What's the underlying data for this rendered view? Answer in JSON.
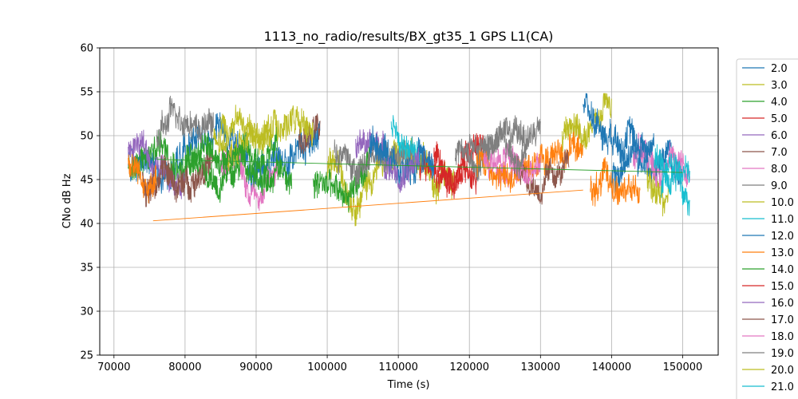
{
  "chart_data": {
    "type": "line",
    "title": "1113_no_radio/results/BX_gt35_1 GPS L1(CA)",
    "xlabel": "Time (s)",
    "ylabel": "CNo dB Hz",
    "xlim": [
      68000,
      155000
    ],
    "ylim": [
      25,
      60
    ],
    "xticks": [
      70000,
      80000,
      90000,
      100000,
      110000,
      120000,
      130000,
      140000,
      150000
    ],
    "xtick_labels": [
      "70000",
      "80000",
      "90000",
      "100000",
      "110000",
      "120000",
      "130000",
      "140000",
      "150000"
    ],
    "yticks": [
      25,
      30,
      35,
      40,
      45,
      50,
      55,
      60
    ],
    "ytick_labels": [
      "25",
      "30",
      "35",
      "40",
      "45",
      "50",
      "55",
      "60"
    ],
    "grid": true,
    "legend_position": "outside-right",
    "series": [
      {
        "name": "2.0",
        "color": "#1f77b4",
        "segments": [
          [
            72000,
            99000,
            48
          ],
          [
            140000,
            150000,
            46
          ]
        ],
        "mean": 47,
        "amp": 2.6
      },
      {
        "name": "3.0",
        "color": "#bcbd22",
        "segments": [
          [
            100000,
            118000,
            46
          ]
        ],
        "mean": 46,
        "amp": 2.5
      },
      {
        "name": "4.0",
        "color": "#2ca02c",
        "segments": [
          [
            72000,
            93000,
            47
          ],
          [
            98000,
            106000,
            45
          ]
        ],
        "mean": 47,
        "amp": 2.6
      },
      {
        "name": "5.0",
        "color": "#d62728",
        "segments": [
          [
            113000,
            122000,
            47
          ]
        ],
        "mean": 47,
        "amp": 2.4
      },
      {
        "name": "6.0",
        "color": "#9467bd",
        "segments": [
          [
            72000,
            80000,
            47
          ],
          [
            104000,
            108000,
            48
          ]
        ],
        "mean": 47,
        "amp": 2.0
      },
      {
        "name": "7.0",
        "color": "#8c564b",
        "segments": [
          [
            74000,
            84000,
            46
          ],
          [
            96000,
            99000,
            50
          ]
        ],
        "mean": 46,
        "amp": 2.5
      },
      {
        "name": "8.0",
        "color": "#e377c2",
        "segments": [
          [
            85000,
            93000,
            46
          ],
          [
            124000,
            128000,
            47
          ],
          [
            143000,
            151000,
            46
          ]
        ],
        "mean": 46,
        "amp": 2.4
      },
      {
        "name": "9.0",
        "color": "#7f7f7f",
        "segments": [
          [
            76000,
            84000,
            51
          ],
          [
            101000,
            112000,
            48
          ],
          [
            118000,
            130000,
            49
          ]
        ],
        "mean": 49,
        "amp": 2.4
      },
      {
        "name": "10.0",
        "color": "#bcbd22",
        "segments": [
          [
            84000,
            98000,
            50
          ],
          [
            133000,
            140000,
            51
          ],
          [
            145000,
            148000,
            44
          ]
        ],
        "mean": 50,
        "amp": 2.4
      },
      {
        "name": "11.0",
        "color": "#17becf",
        "segments": [
          [
            109000,
            113000,
            49
          ],
          [
            147000,
            151000,
            46
          ]
        ],
        "mean": 48,
        "amp": 2.2
      },
      {
        "name": "12.0",
        "color": "#1f77b4",
        "segments": [
          [
            106000,
            115000,
            48
          ],
          [
            136000,
            146000,
            51
          ]
        ],
        "mean": 49,
        "amp": 2.5
      },
      {
        "name": "13.0",
        "color": "#ff7f0e",
        "segments": [
          [
            72000,
            76000,
            45
          ],
          [
            121000,
            136000,
            47
          ],
          [
            137000,
            144000,
            45
          ]
        ],
        "mean": 46,
        "amp": 2.4
      },
      {
        "name": "14.0",
        "color": "#2ca02c",
        "segments": [
          [
            80000,
            95000,
            47
          ]
        ],
        "mean": 47,
        "amp": 2.2
      },
      {
        "name": "15.0",
        "color": "#d62728",
        "segments": [
          [
            115000,
            121000,
            46
          ]
        ],
        "mean": 46,
        "amp": 2.4
      },
      {
        "name": "16.0",
        "color": "#9467bd",
        "segments": [
          [
            108000,
            113000,
            46
          ]
        ],
        "mean": 46,
        "amp": 2.2
      },
      {
        "name": "17.0",
        "color": "#8c564b",
        "segments": [
          [
            126000,
            134000,
            46
          ]
        ],
        "mean": 46,
        "amp": 2.0
      },
      {
        "name": "18.0",
        "color": "#e377c2",
        "segments": [
          [
            122000,
            130000,
            47
          ]
        ],
        "mean": 47,
        "amp": 2.2
      },
      {
        "name": "19.0",
        "color": "#7f7f7f",
        "segments": [
          [
            120000,
            128000,
            49
          ]
        ],
        "mean": 49,
        "amp": 2.0
      },
      {
        "name": "20.0",
        "color": "#bcbd22",
        "segments": [
          [
            85000,
            92000,
            51
          ]
        ],
        "mean": 51,
        "amp": 2.0
      },
      {
        "name": "21.0",
        "color": "#17becf",
        "segments": [
          [
            146000,
            151000,
            46
          ]
        ],
        "mean": 46,
        "amp": 2.2
      }
    ],
    "connector_lines": [
      {
        "color": "#ff7f0e",
        "x": [
          75500,
          136000
        ],
        "y": [
          40.3,
          43.8
        ]
      },
      {
        "color": "#2ca02c",
        "x": [
          76000,
          150000
        ],
        "y": [
          47.3,
          45.8
        ]
      }
    ]
  }
}
